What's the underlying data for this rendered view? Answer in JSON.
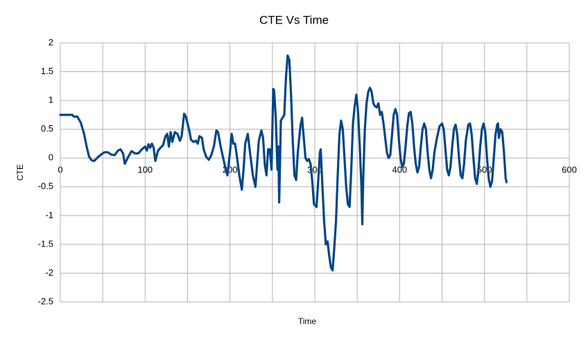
{
  "chart_data": {
    "type": "line",
    "title": "CTE Vs Time",
    "x_label": "Time",
    "y_label": "CTE",
    "color": "#004586",
    "grid": true,
    "xlim": [
      0,
      600
    ],
    "xticks": [
      0,
      100,
      200,
      300,
      400,
      500,
      600
    ],
    "xminorticks": [
      50,
      150,
      250,
      350,
      450,
      550
    ],
    "ylim": [
      -2.5,
      2
    ],
    "yticks": [
      -2.5,
      -2,
      -1.5,
      -1,
      -0.5,
      0,
      0.5,
      1,
      1.5,
      2
    ],
    "x": [
      0,
      5,
      10,
      14,
      16,
      20,
      24,
      28,
      31,
      34,
      37,
      40,
      44,
      48,
      52,
      56,
      60,
      64,
      68,
      71,
      74,
      76,
      80,
      84,
      88,
      92,
      96,
      100,
      102,
      104,
      106,
      108,
      110,
      112,
      115,
      118,
      121,
      124,
      126,
      128,
      130,
      132,
      135,
      138,
      141,
      143,
      146,
      148,
      150,
      152,
      154,
      157,
      160,
      162,
      164,
      167,
      169,
      172,
      175,
      178,
      181,
      184,
      186,
      189,
      192,
      195,
      197,
      200,
      202,
      204,
      206,
      208,
      211,
      214,
      216,
      218,
      221,
      224,
      227,
      230,
      232,
      234,
      237,
      239,
      241,
      243,
      245,
      247,
      249,
      251,
      252,
      254,
      256,
      257,
      258,
      260,
      262,
      264,
      266,
      268,
      270,
      272,
      274,
      276,
      278,
      280,
      283,
      285,
      287,
      289,
      291,
      293,
      295,
      297,
      299,
      302,
      304,
      306,
      307,
      309,
      311,
      313,
      315,
      317,
      319,
      321,
      323,
      325,
      327,
      329,
      331,
      333,
      335,
      337,
      339,
      341,
      343,
      345,
      347,
      349,
      351,
      353,
      355,
      356,
      357,
      359,
      361,
      363,
      365,
      367,
      369,
      371,
      373,
      375,
      377,
      379,
      381,
      383,
      385,
      387,
      389,
      391,
      393,
      395,
      397,
      399,
      401,
      403,
      405,
      407,
      409,
      411,
      413,
      415,
      417,
      419,
      421,
      423,
      425,
      427,
      429,
      431,
      433,
      435,
      437,
      439,
      441,
      444,
      447,
      450,
      452,
      454,
      456,
      458,
      460,
      462,
      464,
      466,
      468,
      470,
      472,
      474,
      476,
      478,
      481,
      483,
      485,
      487,
      489,
      491,
      493,
      495,
      497,
      499,
      501,
      503,
      505,
      507,
      509,
      511,
      513,
      515,
      516,
      517,
      519,
      521,
      523,
      525,
      526
    ],
    "values": [
      0.75,
      0.75,
      0.75,
      0.75,
      0.72,
      0.72,
      0.62,
      0.42,
      0.2,
      0.02,
      -0.04,
      -0.05,
      0.01,
      0.06,
      0.1,
      0.1,
      0.06,
      0.05,
      0.13,
      0.15,
      0.08,
      -0.1,
      0.02,
      0.12,
      0.08,
      0.08,
      0.15,
      0.2,
      0.13,
      0.24,
      0.18,
      0.25,
      0.18,
      -0.05,
      0.12,
      0.18,
      0.22,
      0.38,
      0.42,
      0.2,
      0.45,
      0.28,
      0.45,
      0.42,
      0.3,
      0.38,
      0.77,
      0.72,
      0.6,
      0.48,
      0.32,
      0.28,
      0.3,
      0.25,
      0.38,
      0.35,
      0.15,
      0.02,
      -0.03,
      0.05,
      0.2,
      0.48,
      0.45,
      0.2,
      0,
      -0.2,
      -0.3,
      0.1,
      0.42,
      0.25,
      0.25,
      0.05,
      -0.3,
      -0.55,
      -0.2,
      0.25,
      0.42,
      0.05,
      -0.3,
      -0.5,
      -0.1,
      0.3,
      0.48,
      0.35,
      -0.1,
      -0.3,
      0.15,
      0.15,
      -0.2,
      1.2,
      1.18,
      0.7,
      -0.2,
      0.2,
      -0.77,
      0.65,
      0.7,
      0.75,
      1.4,
      1.78,
      1.7,
      1.1,
      0.3,
      -0.3,
      -0.38,
      0.1,
      0.55,
      0.7,
      0.35,
      0,
      -0.05,
      -0.02,
      -0.1,
      -0.4,
      -0.8,
      -0.85,
      -0.4,
      0.1,
      0.15,
      -0.5,
      -1.1,
      -1.5,
      -1.45,
      -1.7,
      -1.9,
      -1.95,
      -1.55,
      -1.1,
      -0.3,
      0.4,
      0.65,
      0.5,
      0,
      -0.5,
      -0.8,
      -0.85,
      -0.2,
      0.6,
      0.9,
      1.1,
      0.8,
      0.2,
      -0.5,
      -1.15,
      -0.4,
      0.5,
      0.95,
      1.15,
      1.22,
      1.15,
      0.95,
      0.9,
      0.88,
      0.95,
      0.75,
      0.8,
      0.6,
      0.35,
      0.1,
      0,
      0.05,
      0.4,
      0.75,
      0.85,
      0.75,
      0.35,
      0,
      -0.15,
      -0.1,
      0.2,
      0.55,
      0.78,
      0.8,
      0.6,
      0.2,
      -0.1,
      -0.25,
      -0.15,
      0.2,
      0.5,
      0.6,
      0.5,
      0.1,
      -0.2,
      -0.35,
      -0.2,
      0.1,
      0.35,
      0.55,
      0.6,
      0.5,
      0.15,
      -0.2,
      -0.3,
      -0.15,
      0.2,
      0.5,
      0.58,
      0.4,
      0,
      -0.3,
      -0.35,
      -0.1,
      0.3,
      0.58,
      0.6,
      0.4,
      0,
      -0.35,
      -0.45,
      -0.2,
      0.2,
      0.5,
      0.6,
      0.45,
      0,
      -0.35,
      -0.5,
      -0.4,
      0,
      0.4,
      0.58,
      0.6,
      0.35,
      0.5,
      0.45,
      0.1,
      -0.35,
      -0.42
    ]
  }
}
